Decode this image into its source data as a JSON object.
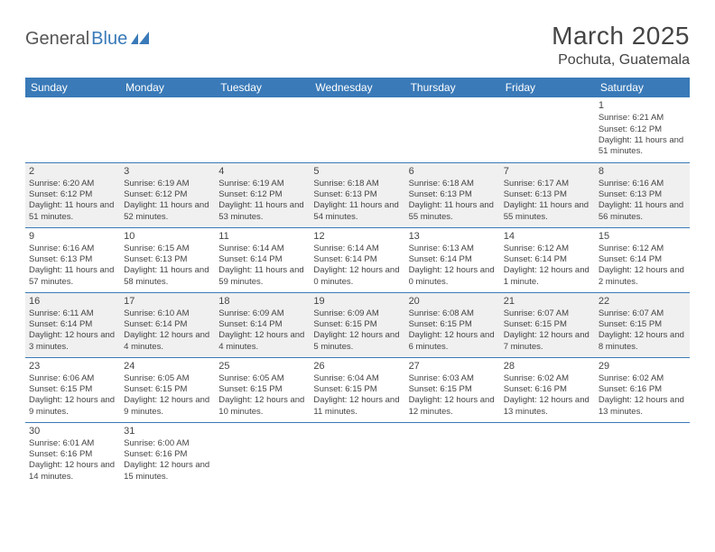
{
  "brand": {
    "part1": "General",
    "part2": "Blue"
  },
  "title": "March 2025",
  "location": "Pochuta, Guatemala",
  "colors": {
    "header_bg": "#3a7ab8",
    "header_fg": "#ffffff",
    "cell_border": "#3a7ab8",
    "shade_bg": "#f0f0f0",
    "text": "#444444"
  },
  "day_headers": [
    "Sunday",
    "Monday",
    "Tuesday",
    "Wednesday",
    "Thursday",
    "Friday",
    "Saturday"
  ],
  "weeks": [
    [
      null,
      null,
      null,
      null,
      null,
      null,
      {
        "n": "1",
        "sr": "Sunrise: 6:21 AM",
        "ss": "Sunset: 6:12 PM",
        "dl": "Daylight: 11 hours and 51 minutes."
      }
    ],
    [
      {
        "n": "2",
        "sr": "Sunrise: 6:20 AM",
        "ss": "Sunset: 6:12 PM",
        "dl": "Daylight: 11 hours and 51 minutes."
      },
      {
        "n": "3",
        "sr": "Sunrise: 6:19 AM",
        "ss": "Sunset: 6:12 PM",
        "dl": "Daylight: 11 hours and 52 minutes."
      },
      {
        "n": "4",
        "sr": "Sunrise: 6:19 AM",
        "ss": "Sunset: 6:12 PM",
        "dl": "Daylight: 11 hours and 53 minutes."
      },
      {
        "n": "5",
        "sr": "Sunrise: 6:18 AM",
        "ss": "Sunset: 6:13 PM",
        "dl": "Daylight: 11 hours and 54 minutes."
      },
      {
        "n": "6",
        "sr": "Sunrise: 6:18 AM",
        "ss": "Sunset: 6:13 PM",
        "dl": "Daylight: 11 hours and 55 minutes."
      },
      {
        "n": "7",
        "sr": "Sunrise: 6:17 AM",
        "ss": "Sunset: 6:13 PM",
        "dl": "Daylight: 11 hours and 55 minutes."
      },
      {
        "n": "8",
        "sr": "Sunrise: 6:16 AM",
        "ss": "Sunset: 6:13 PM",
        "dl": "Daylight: 11 hours and 56 minutes."
      }
    ],
    [
      {
        "n": "9",
        "sr": "Sunrise: 6:16 AM",
        "ss": "Sunset: 6:13 PM",
        "dl": "Daylight: 11 hours and 57 minutes."
      },
      {
        "n": "10",
        "sr": "Sunrise: 6:15 AM",
        "ss": "Sunset: 6:13 PM",
        "dl": "Daylight: 11 hours and 58 minutes."
      },
      {
        "n": "11",
        "sr": "Sunrise: 6:14 AM",
        "ss": "Sunset: 6:14 PM",
        "dl": "Daylight: 11 hours and 59 minutes."
      },
      {
        "n": "12",
        "sr": "Sunrise: 6:14 AM",
        "ss": "Sunset: 6:14 PM",
        "dl": "Daylight: 12 hours and 0 minutes."
      },
      {
        "n": "13",
        "sr": "Sunrise: 6:13 AM",
        "ss": "Sunset: 6:14 PM",
        "dl": "Daylight: 12 hours and 0 minutes."
      },
      {
        "n": "14",
        "sr": "Sunrise: 6:12 AM",
        "ss": "Sunset: 6:14 PM",
        "dl": "Daylight: 12 hours and 1 minute."
      },
      {
        "n": "15",
        "sr": "Sunrise: 6:12 AM",
        "ss": "Sunset: 6:14 PM",
        "dl": "Daylight: 12 hours and 2 minutes."
      }
    ],
    [
      {
        "n": "16",
        "sr": "Sunrise: 6:11 AM",
        "ss": "Sunset: 6:14 PM",
        "dl": "Daylight: 12 hours and 3 minutes."
      },
      {
        "n": "17",
        "sr": "Sunrise: 6:10 AM",
        "ss": "Sunset: 6:14 PM",
        "dl": "Daylight: 12 hours and 4 minutes."
      },
      {
        "n": "18",
        "sr": "Sunrise: 6:09 AM",
        "ss": "Sunset: 6:14 PM",
        "dl": "Daylight: 12 hours and 4 minutes."
      },
      {
        "n": "19",
        "sr": "Sunrise: 6:09 AM",
        "ss": "Sunset: 6:15 PM",
        "dl": "Daylight: 12 hours and 5 minutes."
      },
      {
        "n": "20",
        "sr": "Sunrise: 6:08 AM",
        "ss": "Sunset: 6:15 PM",
        "dl": "Daylight: 12 hours and 6 minutes."
      },
      {
        "n": "21",
        "sr": "Sunrise: 6:07 AM",
        "ss": "Sunset: 6:15 PM",
        "dl": "Daylight: 12 hours and 7 minutes."
      },
      {
        "n": "22",
        "sr": "Sunrise: 6:07 AM",
        "ss": "Sunset: 6:15 PM",
        "dl": "Daylight: 12 hours and 8 minutes."
      }
    ],
    [
      {
        "n": "23",
        "sr": "Sunrise: 6:06 AM",
        "ss": "Sunset: 6:15 PM",
        "dl": "Daylight: 12 hours and 9 minutes."
      },
      {
        "n": "24",
        "sr": "Sunrise: 6:05 AM",
        "ss": "Sunset: 6:15 PM",
        "dl": "Daylight: 12 hours and 9 minutes."
      },
      {
        "n": "25",
        "sr": "Sunrise: 6:05 AM",
        "ss": "Sunset: 6:15 PM",
        "dl": "Daylight: 12 hours and 10 minutes."
      },
      {
        "n": "26",
        "sr": "Sunrise: 6:04 AM",
        "ss": "Sunset: 6:15 PM",
        "dl": "Daylight: 12 hours and 11 minutes."
      },
      {
        "n": "27",
        "sr": "Sunrise: 6:03 AM",
        "ss": "Sunset: 6:15 PM",
        "dl": "Daylight: 12 hours and 12 minutes."
      },
      {
        "n": "28",
        "sr": "Sunrise: 6:02 AM",
        "ss": "Sunset: 6:16 PM",
        "dl": "Daylight: 12 hours and 13 minutes."
      },
      {
        "n": "29",
        "sr": "Sunrise: 6:02 AM",
        "ss": "Sunset: 6:16 PM",
        "dl": "Daylight: 12 hours and 13 minutes."
      }
    ],
    [
      {
        "n": "30",
        "sr": "Sunrise: 6:01 AM",
        "ss": "Sunset: 6:16 PM",
        "dl": "Daylight: 12 hours and 14 minutes."
      },
      {
        "n": "31",
        "sr": "Sunrise: 6:00 AM",
        "ss": "Sunset: 6:16 PM",
        "dl": "Daylight: 12 hours and 15 minutes."
      },
      null,
      null,
      null,
      null,
      null
    ]
  ],
  "shaded_rows": [
    1,
    3
  ]
}
